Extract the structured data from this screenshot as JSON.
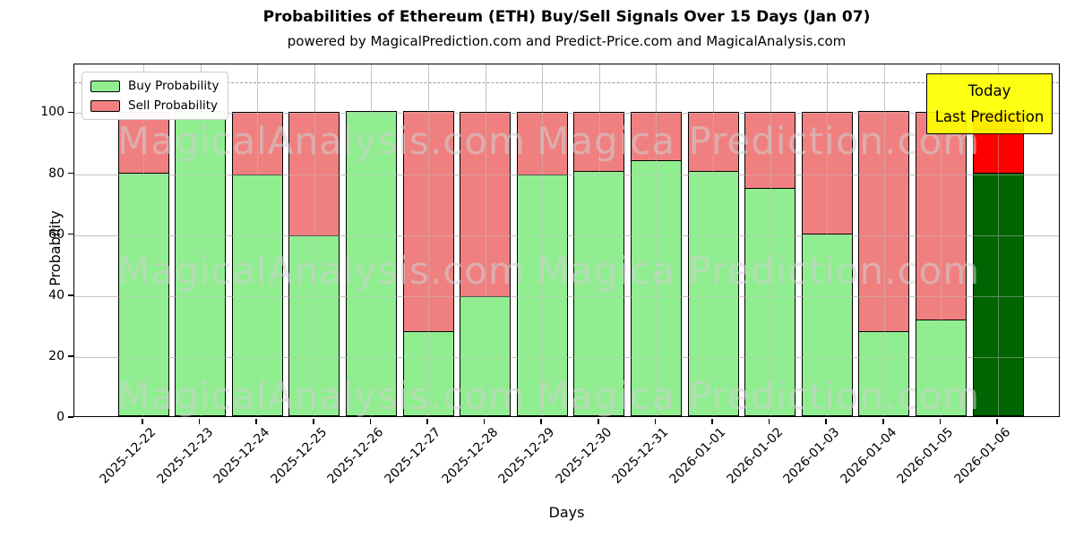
{
  "title": "Probabilities of Ethereum (ETH) Buy/Sell Signals Over 15 Days (Jan 07)",
  "subtitle": "powered by MagicalPrediction.com and Predict-Price.com and MagicalAnalysis.com",
  "axes": {
    "xlabel": "Days",
    "ylabel": "Probability",
    "yticks": [
      0,
      20,
      40,
      60,
      80,
      100
    ]
  },
  "legend": {
    "items": [
      {
        "label": "Buy Probability",
        "color": "#90ee90"
      },
      {
        "label": "Sell Probability",
        "color": "#f08080"
      }
    ]
  },
  "annotation": {
    "line1": "Today",
    "line2": "Last Prediction"
  },
  "watermarks": {
    "left_text": "MagicalAnalysis.com",
    "right_text": "Magica Prediction.com"
  },
  "colors": {
    "buy": "#90ee90",
    "sell": "#f08080",
    "today_buy": "#006400",
    "today_sell": "#ff0000",
    "annotation_bg": "#ffff00",
    "grid": "#c3c3c3"
  },
  "chart_data": {
    "type": "bar",
    "stacked": true,
    "title": "Probabilities of Ethereum (ETH) Buy/Sell Signals Over 15 Days (Jan 07)",
    "xlabel": "Days",
    "ylabel": "Probability",
    "ylim": [
      0,
      116
    ],
    "grid": true,
    "legend_position": "upper left",
    "dashed_line_y": 110,
    "categories": [
      "2025-12-22",
      "2025-12-23",
      "2025-12-24",
      "2025-12-25",
      "2025-12-26",
      "2025-12-27",
      "2025-12-28",
      "2025-12-29",
      "2025-12-30",
      "2025-12-31",
      "2026-01-01",
      "2026-01-02",
      "2026-01-03",
      "2026-01-04",
      "2026-01-05",
      "2026-01-06"
    ],
    "series": [
      {
        "name": "Buy Probability",
        "color": "#90ee90",
        "values": [
          80,
          100,
          79.5,
          59.5,
          100,
          28,
          39.5,
          79.5,
          80.5,
          84,
          80.5,
          75,
          60,
          28,
          32,
          80
        ]
      },
      {
        "name": "Sell Probability",
        "color": "#f08080",
        "values": [
          20,
          0,
          20.5,
          40.5,
          0,
          72,
          60.5,
          20.5,
          19.5,
          16,
          19.5,
          25,
          40,
          72,
          68,
          20
        ]
      }
    ],
    "today_bar": {
      "category": "2026-01-06",
      "index": 15,
      "buy_color": "#006400",
      "sell_color": "#ff0000",
      "label": "Today Last Prediction"
    }
  }
}
